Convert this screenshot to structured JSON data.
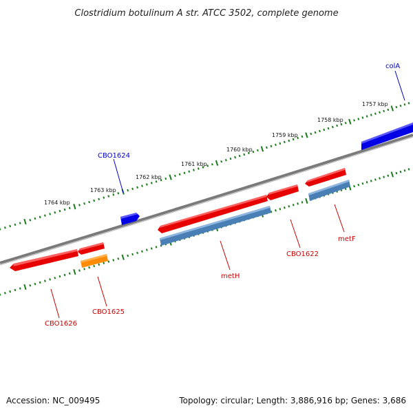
{
  "title": "Clostridium botulinum A str. ATCC 3502, complete genome",
  "footer": {
    "accession": "Accession: NC_009495",
    "summary": "Topology: circular; Length: 3,886,916 bp; Genes: 3,686"
  },
  "colors": {
    "backbone": "#808080",
    "ticks": "#1a7a1a",
    "forward_gene": "#0000e6",
    "reverse_gene": "#e60000",
    "cds_blue": "#4a7fb5",
    "cds_orange": "#ff8c00",
    "forward_label": "#0000cc",
    "reverse_label": "#cc0000"
  },
  "kbp_marks": [
    "1757 kbp",
    "1758 kbp",
    "1759 kbp",
    "1760 kbp",
    "1761 kbp",
    "1762 kbp",
    "1763 kbp",
    "1764 kbp"
  ],
  "gene_labels": {
    "colA": "colA",
    "CBO1624": "CBO1624",
    "CBO1622": "CBO1622",
    "metF": "metF",
    "metH": "metH",
    "CBO1625": "CBO1625",
    "CBO1626": "CBO1626"
  }
}
